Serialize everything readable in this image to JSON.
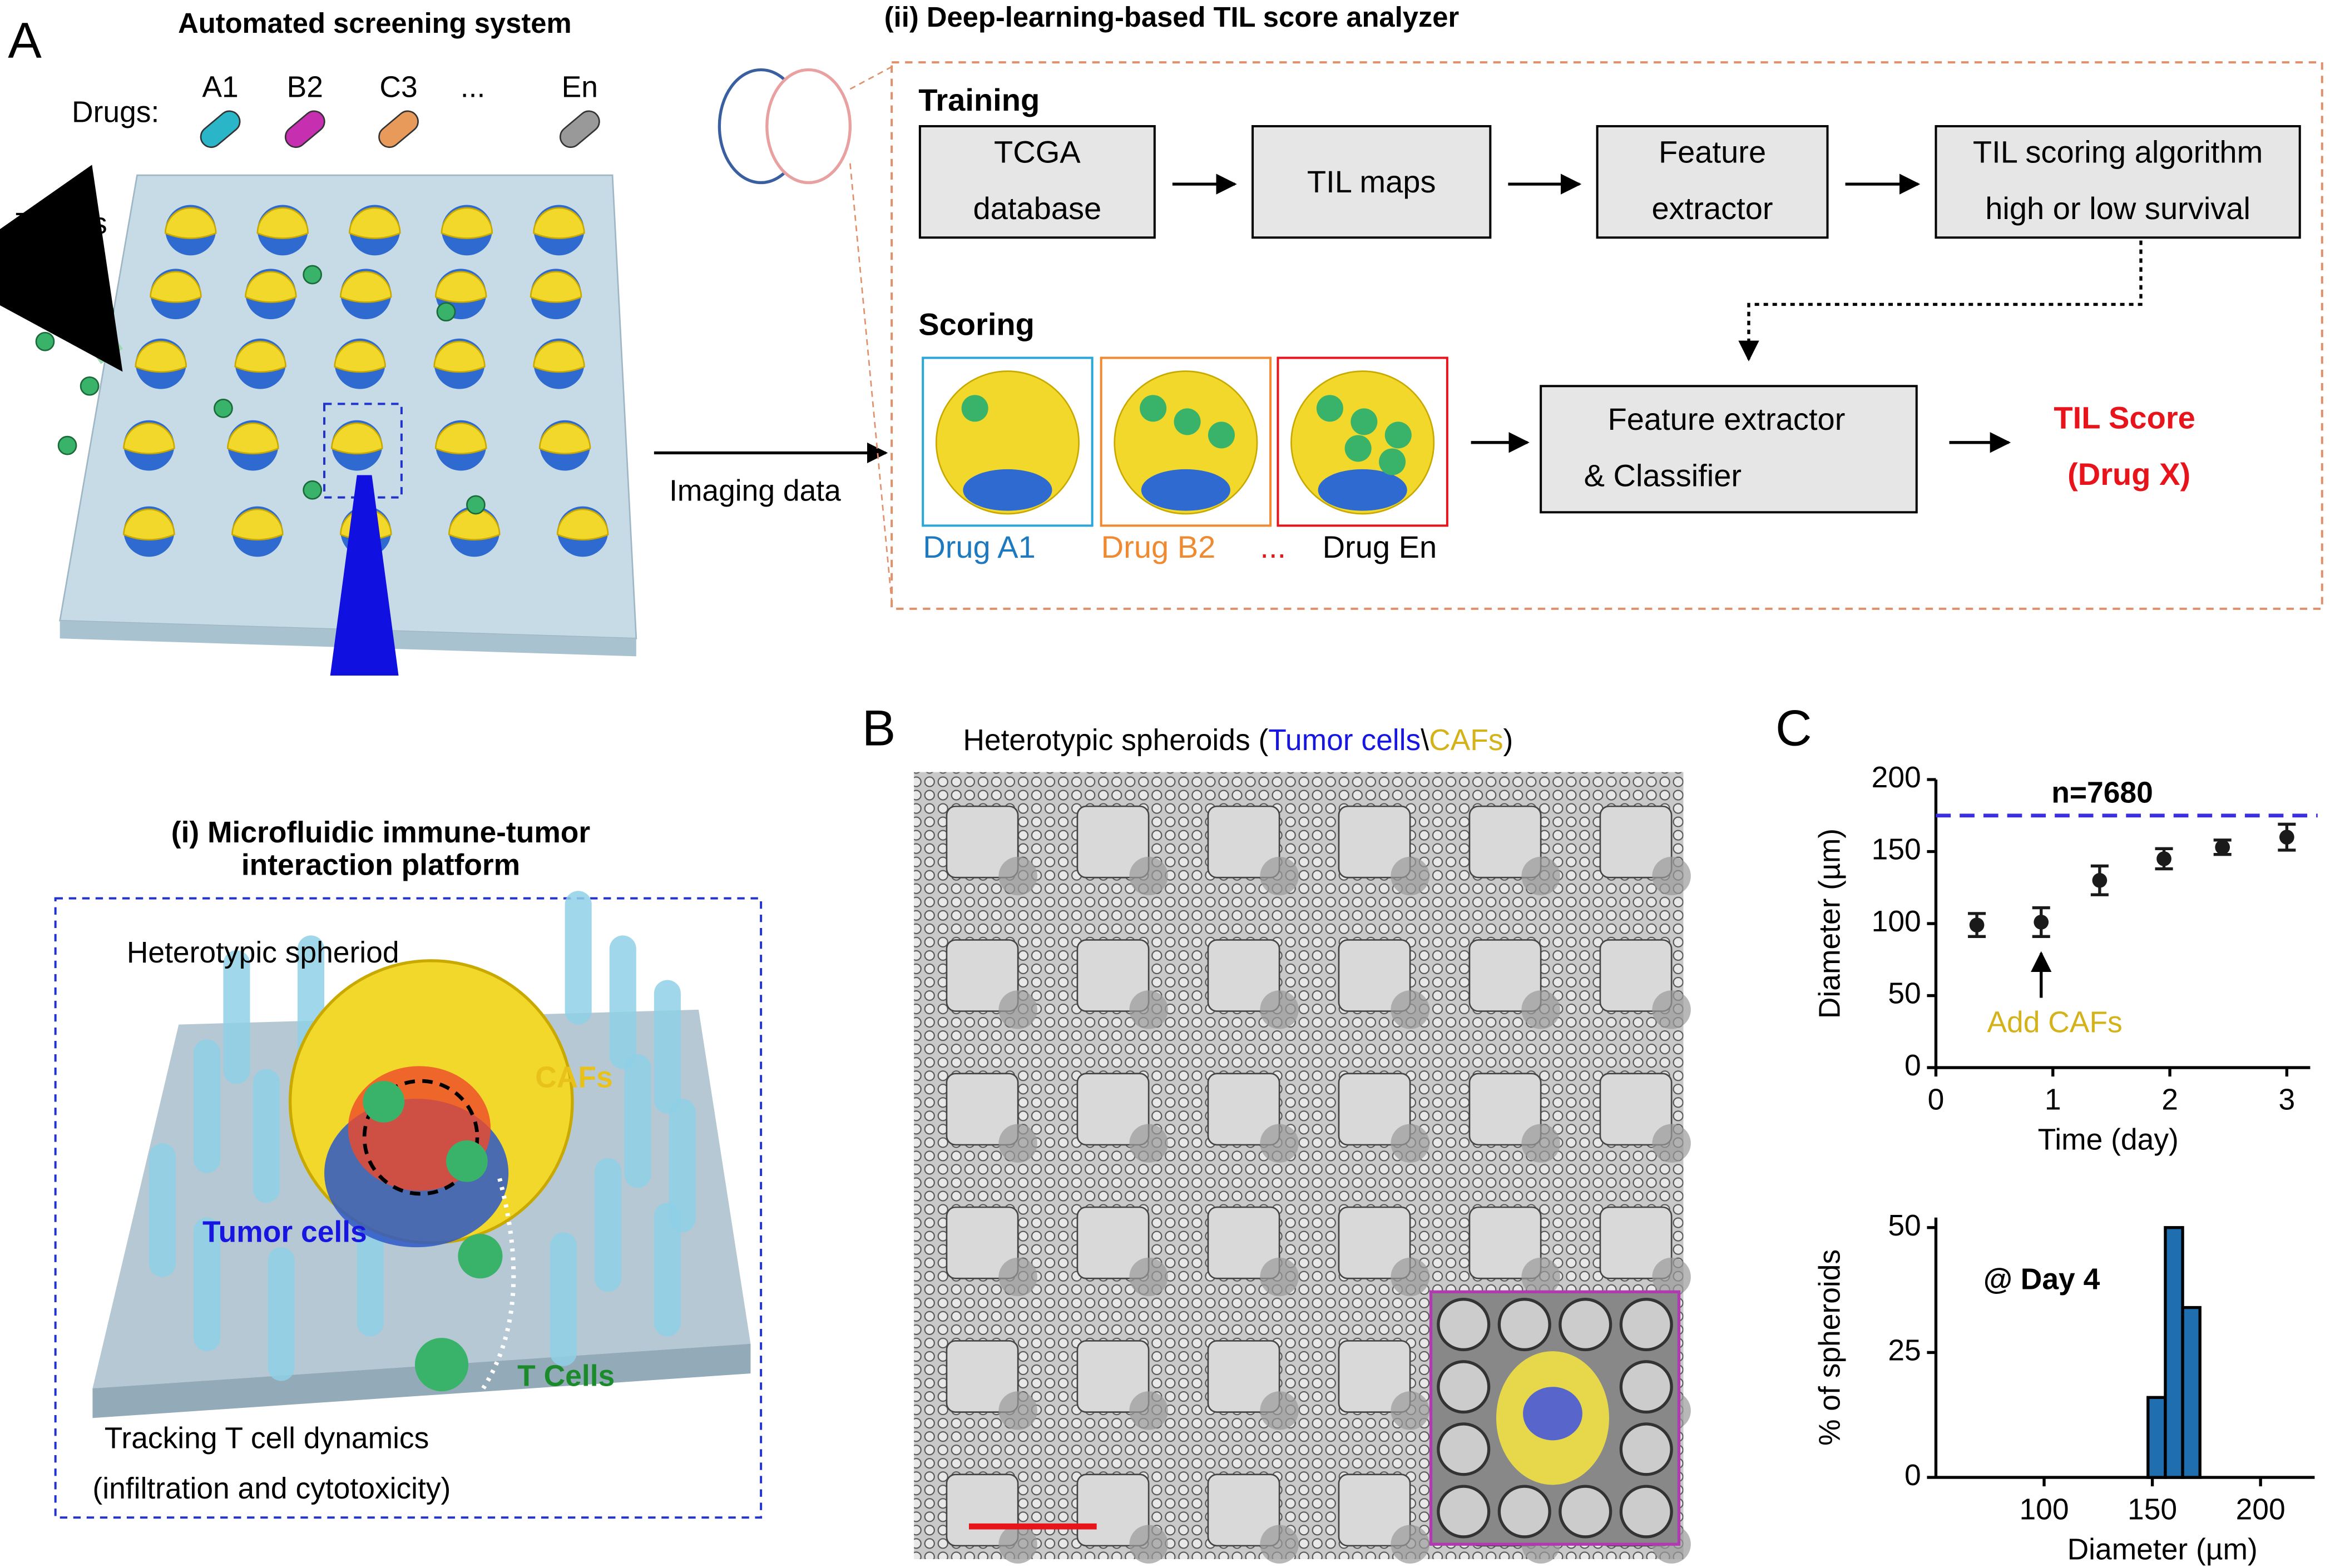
{
  "panel_a": {
    "label": "A",
    "title": "Automated screening system",
    "drugs_label": "Drugs:",
    "drugs": [
      "A1",
      "B2",
      "C3",
      "...",
      "En"
    ],
    "t_cells": "T Cells",
    "imaging_data": "Imaging data"
  },
  "panel_ii": {
    "title": "(ii) Deep-learning-based TIL score analyzer",
    "training": "Training",
    "training_boxes": [
      [
        "TCGA",
        "database"
      ],
      [
        "TIL maps"
      ],
      [
        "Feature",
        "extractor"
      ],
      [
        "TIL scoring algorithm",
        "high or low survival"
      ]
    ],
    "scoring": "Scoring",
    "drug_images": [
      "Drug A1",
      "Drug B2",
      "...",
      "Drug En"
    ],
    "classifier": [
      "Feature extractor",
      "& Classifier"
    ],
    "til_score": [
      "TIL Score",
      "(Drug X)"
    ]
  },
  "panel_i": {
    "title": [
      "(i) Microfluidic immune-tumor",
      "interaction platform"
    ],
    "spheroid": "Heterotypic spheriod",
    "cafs": "CAFs",
    "tumor_cells": "Tumor cells",
    "t_cells": "T Cells",
    "caption": [
      "Tracking T cell dynamics",
      "(infiltration and cytotoxicity)"
    ]
  },
  "panel_b": {
    "label": "B",
    "title": [
      "Heterotypic spheroids (",
      "Tumor cells",
      "\\",
      "CAFs",
      ")"
    ]
  },
  "panel_c": {
    "label": "C"
  },
  "chart_data": [
    {
      "type": "errorbar",
      "x": [
        0.35,
        0.9,
        1.4,
        1.95,
        2.45,
        3
      ],
      "values": [
        99,
        101,
        130,
        145,
        153,
        160
      ],
      "errors": [
        8,
        10,
        10,
        7,
        5,
        9
      ],
      "color": "#1a1a1a",
      "xlim": [
        0,
        3.2
      ],
      "ylim": [
        0,
        200
      ],
      "xticks": [
        0,
        1,
        2,
        3
      ],
      "yticks": [
        0,
        50,
        100,
        150,
        200
      ],
      "xlabel": "Time (day)",
      "ylabel": "Diameter (µm)",
      "reference_line": {
        "value": 175,
        "label": "n=7680",
        "color": "#3b2fe0"
      },
      "annotation": {
        "text": "Add CAFs",
        "x": 0.9,
        "color": "#d4b21a"
      }
    },
    {
      "type": "histogram",
      "bins": [
        148,
        156,
        164,
        172
      ],
      "values": [
        16,
        50,
        34
      ],
      "color": "#1f6fb0",
      "xlim": [
        50,
        225
      ],
      "ylim": [
        0,
        52
      ],
      "xticks": [
        100,
        150,
        200
      ],
      "yticks": [
        0,
        25,
        50
      ],
      "xlabel": "Diameter  (µm)",
      "ylabel": "% of spheroids",
      "annotation": "@ Day 4"
    }
  ]
}
